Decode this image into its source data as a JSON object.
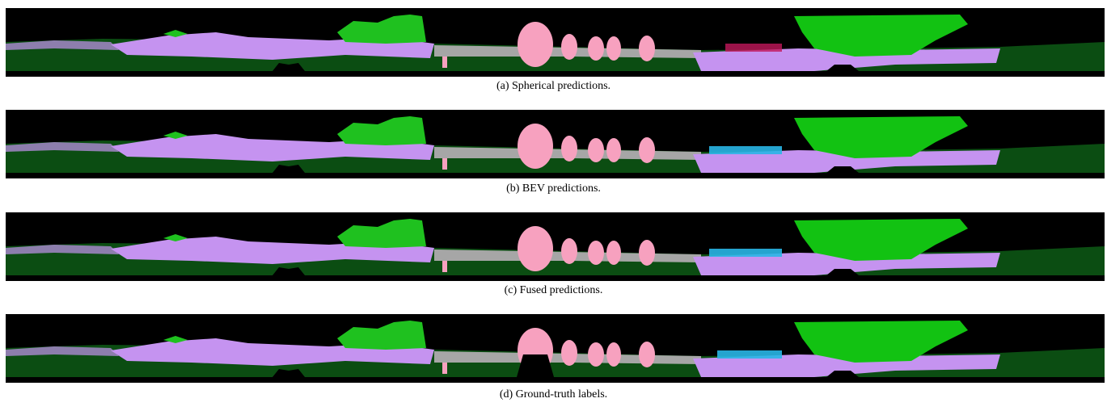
{
  "figure": {
    "captions": [
      "(a) Spherical predictions.",
      "(b) BEV predictions.",
      "(c) Fused predictions.",
      "(d) Ground-truth labels."
    ]
  }
}
